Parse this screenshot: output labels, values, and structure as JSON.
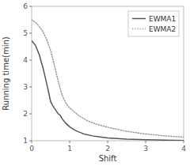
{
  "chart_data": {
    "type": "line",
    "xlabel": "Shift",
    "ylabel": "Running time(min)",
    "xlim": [
      0,
      4
    ],
    "ylim": [
      1,
      6
    ],
    "xticks": [
      0,
      1,
      2,
      3,
      4
    ],
    "yticks": [
      1,
      2,
      3,
      4,
      5,
      6
    ],
    "grid": false,
    "legend": "upper right",
    "series": [
      {
        "name": "EWMA1",
        "color": "#555555",
        "line_style": "solid",
        "x": [
          0.0,
          0.1,
          0.2,
          0.3,
          0.4,
          0.5,
          0.55,
          0.6,
          0.65,
          0.7,
          0.75,
          0.8,
          0.9,
          1.0,
          1.1,
          1.2,
          1.4,
          1.6,
          1.8,
          2.0,
          2.5,
          3.0,
          3.5,
          4.0
        ],
        "values": [
          4.72,
          4.55,
          4.2,
          3.7,
          3.1,
          2.45,
          2.32,
          2.2,
          2.1,
          2.0,
          1.95,
          1.82,
          1.65,
          1.52,
          1.42,
          1.35,
          1.24,
          1.18,
          1.14,
          1.1,
          1.06,
          1.04,
          1.02,
          1.01
        ]
      },
      {
        "name": "EWMA2",
        "color": "#999999",
        "line_style": "dotted",
        "x": [
          0.0,
          0.1,
          0.2,
          0.3,
          0.4,
          0.5,
          0.6,
          0.7,
          0.8,
          0.9,
          1.0,
          1.1,
          1.2,
          1.3,
          1.5,
          1.7,
          2.0,
          2.5,
          3.0,
          3.5,
          4.0
        ],
        "values": [
          5.5,
          5.4,
          5.25,
          5.05,
          4.75,
          4.35,
          3.8,
          3.2,
          2.7,
          2.4,
          2.22,
          2.1,
          1.98,
          1.88,
          1.72,
          1.62,
          1.5,
          1.35,
          1.25,
          1.18,
          1.13
        ]
      }
    ]
  }
}
